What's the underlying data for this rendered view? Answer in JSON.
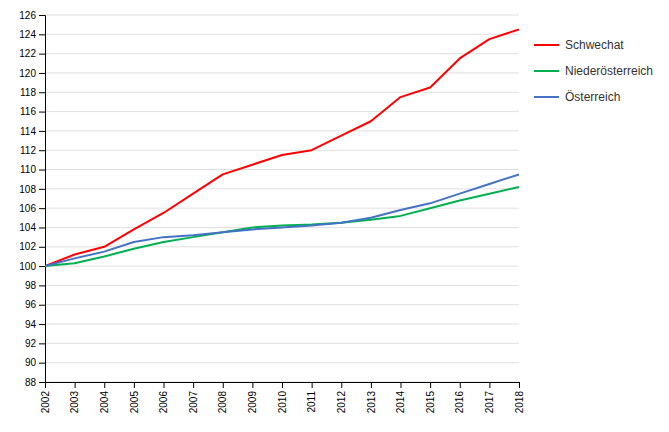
{
  "chart_data": {
    "type": "line",
    "x": [
      2002,
      2003,
      2004,
      2005,
      2006,
      2007,
      2008,
      2009,
      2010,
      2011,
      2012,
      2013,
      2014,
      2015,
      2016,
      2017,
      2018
    ],
    "series": [
      {
        "name": "Schwechat",
        "color": "#ff0000",
        "values": [
          100.0,
          101.2,
          102.0,
          103.8,
          105.5,
          107.5,
          109.5,
          110.5,
          111.5,
          112.0,
          113.5,
          115.0,
          117.5,
          118.5,
          121.5,
          123.5,
          124.5
        ]
      },
      {
        "name": "Niederösterreich",
        "color": "#00b050",
        "values": [
          100.0,
          100.3,
          101.0,
          101.8,
          102.5,
          103.0,
          103.5,
          104.0,
          104.2,
          104.3,
          104.5,
          104.8,
          105.2,
          106.0,
          106.8,
          107.5,
          108.2
        ]
      },
      {
        "name": "Österreich",
        "color": "#4472c4",
        "values": [
          100.0,
          100.8,
          101.5,
          102.5,
          103.0,
          103.2,
          103.5,
          103.8,
          104.0,
          104.2,
          104.5,
          105.0,
          105.8,
          106.5,
          107.5,
          108.5,
          109.5
        ]
      }
    ],
    "xlim": [
      2002,
      2018
    ],
    "xticks": [
      2002,
      2003,
      2004,
      2005,
      2006,
      2007,
      2008,
      2009,
      2010,
      2011,
      2012,
      2013,
      2014,
      2015,
      2016,
      2017,
      2018
    ],
    "ylim": [
      88,
      126
    ],
    "yticks": [
      88,
      90,
      92,
      94,
      96,
      98,
      100,
      102,
      104,
      106,
      108,
      110,
      112,
      114,
      116,
      118,
      120,
      122,
      124,
      126
    ],
    "grid": true,
    "legend": "right"
  }
}
